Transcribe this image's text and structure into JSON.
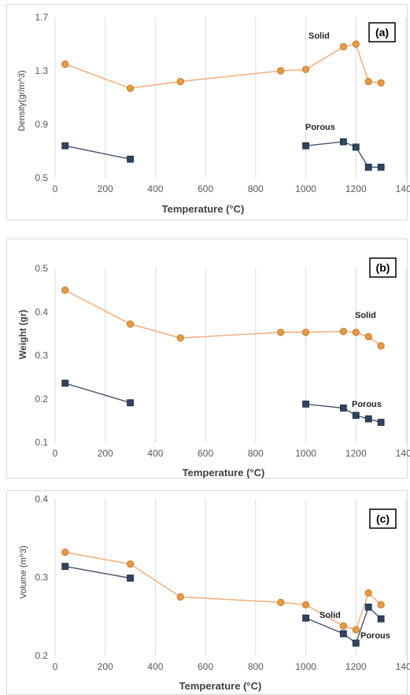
{
  "colors": {
    "solid_line": "#f4b183",
    "solid_marker": "#e59a43",
    "solid_marker_stroke": "#c27022",
    "porous_line": "#44546a",
    "porous_marker": "#2f4460",
    "porous_marker_stroke": "#1a2a3e",
    "grid": "#d9d9d9"
  },
  "chart_data": [
    {
      "id": "a",
      "type": "line",
      "panel_label": "(a)",
      "xlabel": "Temperature (°C)",
      "ylabel": "Density(gr/m^3)",
      "xlim": [
        0,
        1400
      ],
      "ylim": [
        0.5,
        1.7
      ],
      "xticks": [
        "0",
        "200",
        "400",
        "600",
        "800",
        "1000",
        "1200",
        "1400"
      ],
      "yticks": [
        "0.5",
        "0.9",
        "1.3",
        "1.7"
      ],
      "ytick_values": [
        0.5,
        0.9,
        1.3,
        1.7
      ],
      "grid": "vertical",
      "series": [
        {
          "name": "Solid",
          "segments": [
            [
              [
                40,
                1.35
              ],
              [
                300,
                1.17
              ],
              [
                500,
                1.22
              ],
              [
                900,
                1.3
              ],
              [
                1000,
                1.31
              ],
              [
                1150,
                1.48
              ],
              [
                1200,
                1.5
              ],
              [
                1250,
                1.22
              ],
              [
                1300,
                1.21
              ]
            ]
          ]
        },
        {
          "name": "Porous",
          "segments": [
            [
              [
                40,
                0.74
              ],
              [
                300,
                0.64
              ]
            ],
            [
              [
                1000,
                0.74
              ],
              [
                1150,
                0.77
              ],
              [
                1200,
                0.73
              ],
              [
                1250,
                0.58
              ],
              [
                1300,
                0.58
              ]
            ]
          ]
        }
      ]
    },
    {
      "id": "b",
      "type": "line",
      "panel_label": "(b)",
      "xlabel": "Temperature (°C)",
      "ylabel": "Weight (gr)",
      "xlim": [
        0,
        1400
      ],
      "ylim": [
        0.1,
        0.5
      ],
      "xticks": [
        "0",
        "200",
        "400",
        "600",
        "800",
        "1000",
        "1200",
        "1400"
      ],
      "yticks": [
        "0.1",
        "0.2",
        "0.3",
        "0.4",
        "0.5"
      ],
      "ytick_values": [
        0.1,
        0.2,
        0.3,
        0.4,
        0.5
      ],
      "grid": "vertical",
      "series": [
        {
          "name": "Solid",
          "segments": [
            [
              [
                40,
                0.45
              ],
              [
                300,
                0.372
              ],
              [
                500,
                0.34
              ],
              [
                900,
                0.353
              ],
              [
                1000,
                0.353
              ],
              [
                1150,
                0.355
              ],
              [
                1200,
                0.353
              ],
              [
                1250,
                0.343
              ],
              [
                1300,
                0.322
              ]
            ]
          ]
        },
        {
          "name": "Porous",
          "segments": [
            [
              [
                40,
                0.236
              ],
              [
                300,
                0.191
              ]
            ],
            [
              [
                1000,
                0.188
              ],
              [
                1150,
                0.179
              ],
              [
                1200,
                0.162
              ],
              [
                1250,
                0.154
              ],
              [
                1300,
                0.146
              ]
            ]
          ]
        }
      ]
    },
    {
      "id": "c",
      "type": "line",
      "panel_label": "(c)",
      "xlabel": "Temperature (°C)",
      "ylabel": "Volume (m^3)",
      "xlim": [
        0,
        1400
      ],
      "ylim": [
        0.2,
        0.4
      ],
      "xticks": [
        "0",
        "200",
        "400",
        "600",
        "800",
        "1000",
        "1200",
        "1400"
      ],
      "yticks": [
        "0.2",
        "0.3",
        "0.4"
      ],
      "ytick_values": [
        0.2,
        0.3,
        0.4
      ],
      "grid": "vertical",
      "series": [
        {
          "name": "Solid",
          "segments": [
            [
              [
                40,
                0.332
              ],
              [
                300,
                0.317
              ],
              [
                500,
                0.275
              ],
              [
                900,
                0.268
              ],
              [
                1000,
                0.265
              ],
              [
                1150,
                0.238
              ],
              [
                1200,
                0.233
              ],
              [
                1250,
                0.28
              ],
              [
                1300,
                0.265
              ]
            ]
          ]
        },
        {
          "name": "Porous",
          "segments": [
            [
              [
                40,
                0.314
              ],
              [
                300,
                0.299
              ]
            ],
            [
              [
                1000,
                0.248
              ],
              [
                1150,
                0.228
              ],
              [
                1200,
                0.216
              ],
              [
                1250,
                0.262
              ],
              [
                1300,
                0.247
              ]
            ]
          ]
        }
      ]
    }
  ]
}
